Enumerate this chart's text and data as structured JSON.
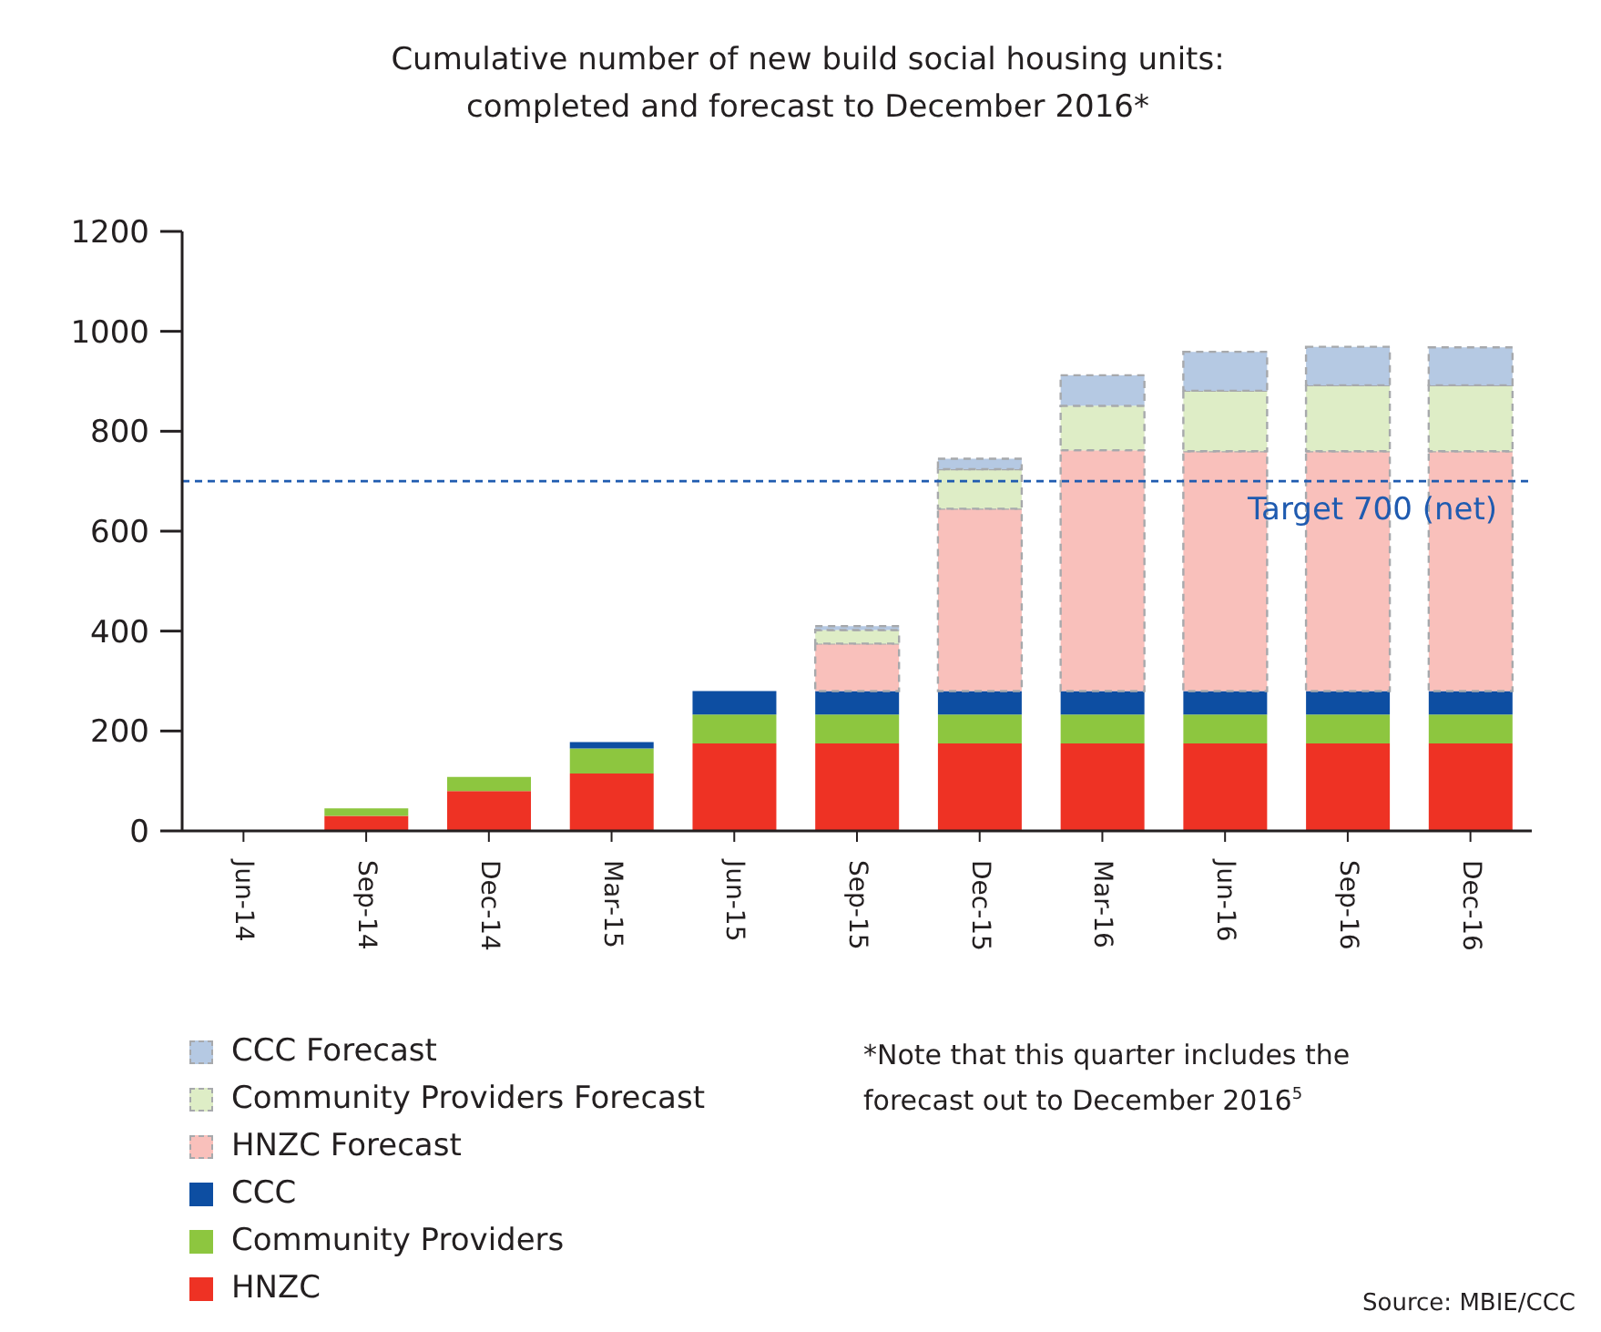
{
  "chart_data": {
    "type": "bar",
    "stacked": true,
    "title": "Cumulative number of new build social housing units:\ncompleted and forecast to December 2016*",
    "categories": [
      "Jun-14",
      "Sep-14",
      "Dec-14",
      "Mar-15",
      "Jun-15",
      "Sep-15",
      "Dec-15",
      "Mar-16",
      "Jun-16",
      "Sep-16",
      "Dec-16"
    ],
    "series": [
      {
        "name": "HNZC",
        "color": "#ee3224",
        "values": [
          0,
          30,
          80,
          115,
          175,
          175,
          175,
          175,
          175,
          175,
          175
        ]
      },
      {
        "name": "Community Providers",
        "color": "#8dc63f",
        "values": [
          0,
          15,
          28,
          50,
          58,
          58,
          58,
          58,
          58,
          58,
          58
        ]
      },
      {
        "name": "CCC",
        "color": "#0d4ea2",
        "values": [
          0,
          0,
          0,
          13,
          47,
          47,
          47,
          47,
          47,
          47,
          47
        ]
      },
      {
        "name": "HNZC Forecast",
        "color": "#f9c0bb",
        "line_style": "dashed",
        "values": [
          0,
          0,
          0,
          0,
          0,
          95,
          365,
          482,
          480,
          480,
          480
        ]
      },
      {
        "name": "Community Providers Forecast",
        "color": "#deedc6",
        "line_style": "dashed",
        "values": [
          0,
          0,
          0,
          0,
          0,
          27,
          79,
          89,
          121,
          132,
          132
        ]
      },
      {
        "name": "CCC Forecast",
        "color": "#b5c9e3",
        "line_style": "dashed",
        "values": [
          0,
          0,
          0,
          0,
          0,
          8,
          21,
          61,
          78,
          77,
          76
        ]
      }
    ],
    "ylim": [
      0,
      1200
    ],
    "yticks": [
      0,
      200,
      400,
      600,
      800,
      1000,
      1200
    ],
    "grid": false,
    "legend": "bottom left",
    "ref_lines": [
      {
        "axis": "y",
        "value": 700,
        "label": "Target 700 (net)",
        "color": "#1f5bb0",
        "line_style": "dashed"
      }
    ],
    "annotations": [
      "*Note that this quarter includes the forecast out to December 2016$^{5}$",
      "Source: MBIE/CCC"
    ]
  }
}
